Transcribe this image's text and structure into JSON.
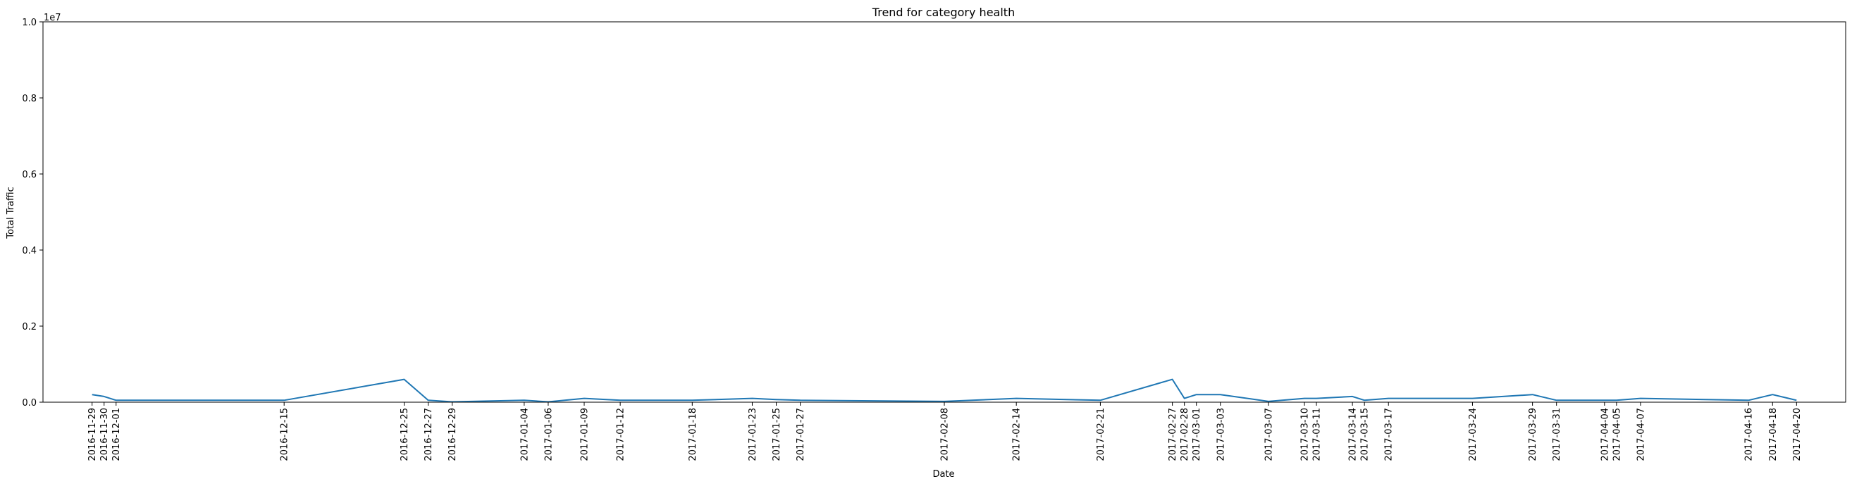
{
  "chart_data": {
    "type": "line",
    "title": "Trend for category health",
    "xlabel": "Date",
    "ylabel": "Total Traffic",
    "y_offset_label": "1e7",
    "ylim": [
      0,
      10000000
    ],
    "y_ticks": [
      0,
      2000000,
      4000000,
      6000000,
      8000000,
      10000000
    ],
    "y_tick_labels": [
      "0.0",
      "0.2",
      "0.4",
      "0.6",
      "0.8",
      "1.0"
    ],
    "grid": false,
    "line_color": "#1f77b4",
    "series": [
      {
        "x": [
          "2016-11-29",
          "2016-11-30",
          "2016-12-01",
          "2016-12-15",
          "2016-12-25",
          "2016-12-27",
          "2016-12-29",
          "2017-01-04",
          "2017-01-06",
          "2017-01-09",
          "2017-01-12",
          "2017-01-18",
          "2017-01-23",
          "2017-01-25",
          "2017-01-27",
          "2017-02-08",
          "2017-02-14",
          "2017-02-21",
          "2017-02-27",
          "2017-02-28",
          "2017-03-01",
          "2017-03-03",
          "2017-03-07",
          "2017-03-10",
          "2017-03-11",
          "2017-03-14",
          "2017-03-15",
          "2017-03-17",
          "2017-03-24",
          "2017-03-29",
          "2017-03-31",
          "2017-04-04",
          "2017-04-05",
          "2017-04-07",
          "2017-04-16",
          "2017-04-18",
          "2017-04-20"
        ],
        "values": [
          200000,
          150000,
          50000,
          50000,
          600000,
          50000,
          10000,
          50000,
          10000,
          100000,
          50000,
          50000,
          100000,
          70000,
          50000,
          20000,
          100000,
          50000,
          600000,
          100000,
          200000,
          200000,
          20000,
          100000,
          100000,
          150000,
          50000,
          100000,
          100000,
          200000,
          50000,
          50000,
          50000,
          100000,
          50000,
          200000,
          50000
        ]
      }
    ]
  }
}
